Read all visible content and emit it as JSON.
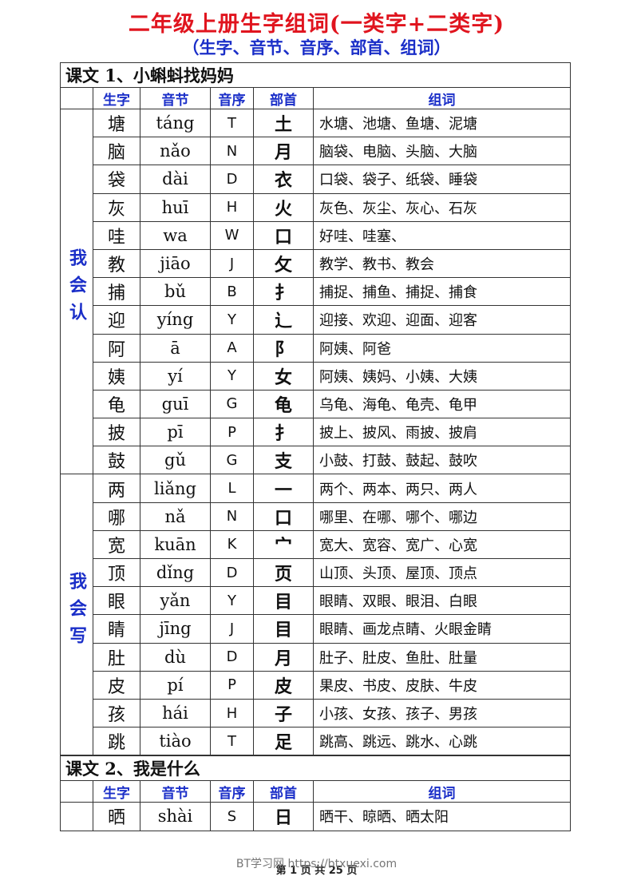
{
  "header": {
    "title": "二年级上册生字组词(一类字+二类字)",
    "subtitle": "（生字、音节、音序、部首、组词）"
  },
  "lessons": [
    {
      "title": "课文 1、小蝌蚪找妈妈",
      "columns": [
        "生字",
        "音节",
        "音序",
        "部首",
        "组词"
      ],
      "groups": [
        {
          "label": "我会认",
          "rows": [
            [
              "塘",
              "táng",
              "T",
              "土",
              "水塘、池塘、鱼塘、泥塘"
            ],
            [
              "脑",
              "nǎo",
              "N",
              "月",
              "脑袋、电脑、头脑、大脑"
            ],
            [
              "袋",
              "dài",
              "D",
              "衣",
              "口袋、袋子、纸袋、睡袋"
            ],
            [
              "灰",
              "huī",
              "H",
              "火",
              "灰色、灰尘、灰心、石灰"
            ],
            [
              "哇",
              "wa",
              "W",
              "口",
              "好哇、哇塞、"
            ],
            [
              "教",
              "jiāo",
              "J",
              "攵",
              "教学、教书、教会"
            ],
            [
              "捕",
              "bǔ",
              "B",
              "扌",
              "捕捉、捕鱼、捕捉、捕食"
            ],
            [
              "迎",
              "yíng",
              "Y",
              "辶",
              "迎接、欢迎、迎面、迎客"
            ],
            [
              "阿",
              "ā",
              "A",
              "阝",
              "阿姨、阿爸"
            ],
            [
              "姨",
              "yí",
              "Y",
              "女",
              "阿姨、姨妈、小姨、大姨"
            ],
            [
              "龟",
              "guī",
              "G",
              "龟",
              "乌龟、海龟、龟壳、龟甲"
            ],
            [
              "披",
              "pī",
              "P",
              "扌",
              "披上、披风、雨披、披肩"
            ],
            [
              "鼓",
              "gǔ",
              "G",
              "支",
              "小鼓、打鼓、鼓起、鼓吹"
            ]
          ]
        },
        {
          "label": "我会写",
          "rows": [
            [
              "两",
              "liǎng",
              "L",
              "一",
              "两个、两本、两只、两人"
            ],
            [
              "哪",
              "nǎ",
              "N",
              "口",
              "哪里、在哪、哪个、哪边"
            ],
            [
              "宽",
              "kuān",
              "K",
              "宀",
              "宽大、宽容、宽广、心宽"
            ],
            [
              "顶",
              "dǐng",
              "D",
              "页",
              "山顶、头顶、屋顶、顶点"
            ],
            [
              "眼",
              "yǎn",
              "Y",
              "目",
              "眼睛、双眼、眼泪、白眼"
            ],
            [
              "睛",
              "jīng",
              "J",
              "目",
              "眼睛、画龙点睛、火眼金睛"
            ],
            [
              "肚",
              "dù",
              "D",
              "月",
              "肚子、肚皮、鱼肚、肚量"
            ],
            [
              "皮",
              "pí",
              "P",
              "皮",
              "果皮、书皮、皮肤、牛皮"
            ],
            [
              "孩",
              "hái",
              "H",
              "子",
              "小孩、女孩、孩子、男孩"
            ],
            [
              "跳",
              "tiào",
              "T",
              "足",
              "跳高、跳远、跳水、心跳"
            ]
          ]
        }
      ]
    },
    {
      "title": "课文 2、我是什么",
      "columns": [
        "生字",
        "音节",
        "音序",
        "部首",
        "组词"
      ],
      "groups": [
        {
          "rows": [
            [
              "晒",
              "shài",
              "S",
              "日",
              "晒干、晾晒、晒太阳"
            ]
          ]
        }
      ]
    }
  ],
  "footer": {
    "watermark": "BT学习网 https://btxuexi.com",
    "page": "第 1 页 共 25 页"
  }
}
